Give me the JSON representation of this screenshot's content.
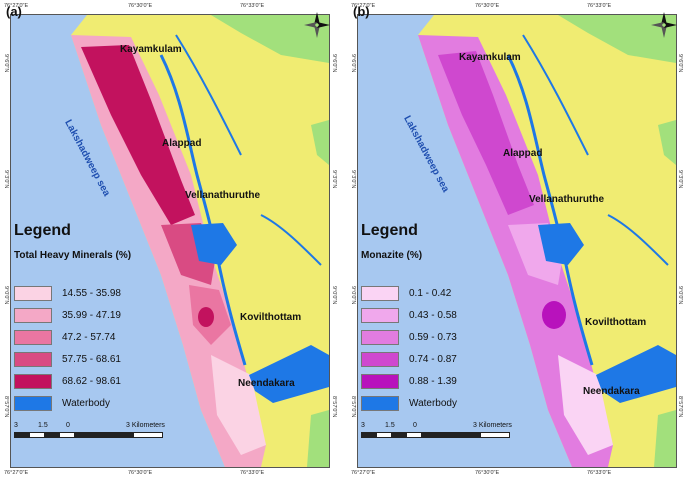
{
  "colors": {
    "sea": "#a7c8f0",
    "land_yellow": "#f0ec72",
    "land_green": "#a2e07c",
    "water": "#1e78e6"
  },
  "ticks": {
    "top": [
      "76°27'0\"E",
      "76°30'0\"E",
      "76°33'0\"E"
    ],
    "bottom": [
      "76°27'0\"E",
      "76°30'0\"E",
      "76°33'0\"E"
    ],
    "left": [
      "9°6'0\"N",
      "9°3'0\"N",
      "9°0'0\"N",
      "8°57'0\"N"
    ],
    "right": [
      "9°6'0\"N",
      "9°3'0\"N",
      "9°0'0\"N",
      "8°57'0\"N"
    ]
  },
  "places": {
    "kayamkulam": "Kayamkulam",
    "alappad": "Alappad",
    "vellanathuruthe": "Vellanathuruthe",
    "kovilthottam": "Kovilthottam",
    "neendakara": "Neendakara",
    "sea": "Lakshadweep sea"
  },
  "scale": {
    "labels": [
      "3",
      "1.5",
      "0",
      "3 Kilometers"
    ]
  },
  "panels": [
    {
      "id": "a",
      "label": "(a)",
      "legend_title": "Legend",
      "legend_subtitle": "Total Heavy Minerals (%)",
      "classes": [
        {
          "label": "14.55 - 35.98",
          "color": "#fbd3e4"
        },
        {
          "label": "35.99 - 47.19",
          "color": "#f4a8c6"
        },
        {
          "label": "47.2 - 57.74",
          "color": "#ea76a2"
        },
        {
          "label": "57.75 - 68.61",
          "color": "#d94b83"
        },
        {
          "label": "68.62 - 98.61",
          "color": "#c2125e"
        },
        {
          "label": "Waterbody",
          "color": "#1e78e6"
        }
      ]
    },
    {
      "id": "b",
      "label": "(b)",
      "legend_title": "Legend",
      "legend_subtitle": "Monazite (%)",
      "classes": [
        {
          "label": "0.1 - 0.42",
          "color": "#fad4f4"
        },
        {
          "label": "0.43 - 0.58",
          "color": "#f0a8ec"
        },
        {
          "label": "0.59 - 0.73",
          "color": "#e27ce0"
        },
        {
          "label": "0.74 - 0.87",
          "color": "#cf48cf"
        },
        {
          "label": "0.88 - 1.39",
          "color": "#b812bc"
        },
        {
          "label": "Waterbody",
          "color": "#1e78e6"
        }
      ]
    }
  ]
}
